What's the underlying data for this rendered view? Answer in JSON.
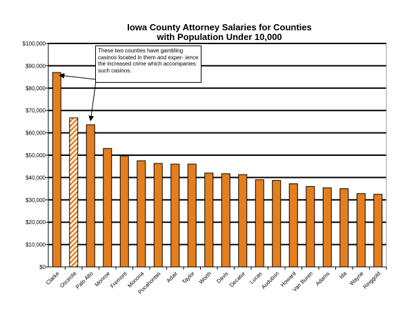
{
  "chart_data": {
    "type": "bar",
    "title": [
      "Iowa County Attorney Salaries for Counties",
      "with Population Under 10,000"
    ],
    "categories": [
      "Clarke",
      "Osceola",
      "Palo Alto",
      "Monroe",
      "Fremont",
      "Monona",
      "Pocahontas",
      "Adair",
      "Taylor",
      "Worth",
      "Davis",
      "Decatur",
      "Lucas",
      "Audubon",
      "Howard",
      "Van Buren",
      "Adams",
      "Ida",
      "Wayne",
      "Ringgold"
    ],
    "values": [
      87000,
      66700,
      63600,
      53000,
      49700,
      47500,
      46300,
      46000,
      46000,
      42000,
      41700,
      41300,
      39000,
      38700,
      37200,
      36000,
      35400,
      35000,
      32800,
      32500
    ],
    "hatched": [
      "Osceola"
    ],
    "ylim": [
      0,
      100000
    ],
    "yticks": [
      "$0",
      "$10,000",
      "$20,000",
      "$30,000",
      "$40,000",
      "$50,000",
      "$60,000",
      "$70,000",
      "$80,000",
      "$90,000",
      "$100,000"
    ],
    "xlabel": "",
    "ylabel": "",
    "grid": true,
    "bar_color": "#E57E1E",
    "annotation": {
      "text": "These two counties have gambling casinos located in them and exper- ience the increased crime which accompanies such casinos.",
      "points_to": [
        "Clarke",
        "Palo Alto"
      ]
    }
  }
}
